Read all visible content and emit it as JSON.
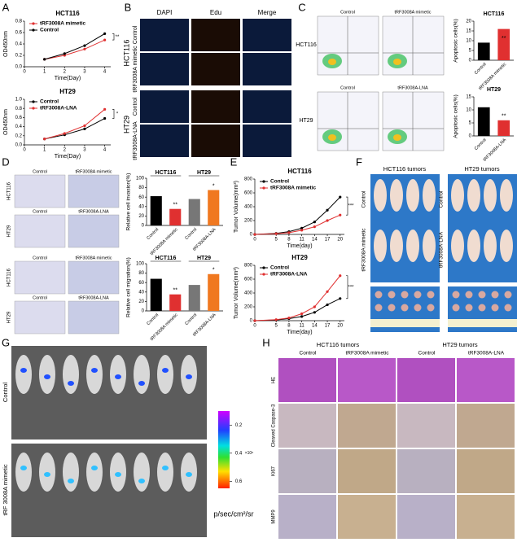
{
  "panel_labels": [
    "A",
    "B",
    "C",
    "D",
    "E",
    "F",
    "G",
    "H"
  ],
  "A": {
    "charts": [
      {
        "type": "line",
        "title": "HCT116",
        "xlabel": "Time(Day)",
        "ylabel": "OD450nm",
        "x": [
          1,
          2,
          3,
          4
        ],
        "xlim": [
          0,
          4.3
        ],
        "xticks": [
          0,
          1,
          2,
          3,
          4
        ],
        "ylim": [
          0,
          0.8
        ],
        "yticks": [
          {
            "value": 0,
            "label": "0.0"
          },
          0.2,
          0.4,
          0.6,
          0.8
        ],
        "annotation": "**",
        "series": [
          {
            "name": "tRF3008A mimetic",
            "color": "#e03030",
            "values": [
              0.13,
              0.2,
              0.31,
              0.47
            ]
          },
          {
            "name": "Control",
            "color": "#000000",
            "values": [
              0.13,
              0.23,
              0.37,
              0.58
            ]
          }
        ]
      },
      {
        "type": "line",
        "title": "HT29",
        "xlabel": "Time(Day)",
        "ylabel": "OD450nm",
        "x": [
          1,
          2,
          3,
          4
        ],
        "xlim": [
          0,
          4.3
        ],
        "xticks": [
          0,
          1,
          2,
          3,
          4
        ],
        "ylim": [
          0,
          1.0
        ],
        "yticks": [
          {
            "value": 0,
            "label": "0.0"
          },
          0.2,
          0.4,
          0.6,
          0.8,
          {
            "value": 1,
            "label": "1.0"
          }
        ],
        "annotation": "*",
        "series": [
          {
            "name": "Control",
            "color": "#000000",
            "values": [
              0.13,
              0.22,
              0.35,
              0.58
            ]
          },
          {
            "name": "tRF3008A-LNA",
            "color": "#e03030",
            "values": [
              0.13,
              0.25,
              0.42,
              0.78
            ]
          }
        ]
      }
    ]
  },
  "B": {
    "columns": [
      "DAPI",
      "Edu",
      "Merge"
    ],
    "rows": [
      "Control",
      "tRF3008A mimetic",
      "Control",
      "tRF3008A-LNA"
    ],
    "groups": [
      "HCT116",
      "HT29"
    ]
  },
  "C": {
    "flow_titles": [
      "Control",
      "tRF3008A mimetic",
      "Control",
      "tRF3008A-LNA"
    ],
    "groups": [
      "HCT116",
      "HT29"
    ],
    "charts": [
      {
        "type": "bar",
        "title": "HCT116",
        "ylabel": "Apoptosic cells(%)",
        "categories": [
          "Control",
          "tRF3008A mimetic"
        ],
        "values": [
          9,
          16
        ],
        "colors": [
          "#000000",
          "#e03030"
        ],
        "ylim": [
          0,
          20
        ],
        "yticks": [
          0,
          5,
          10,
          15,
          20
        ],
        "annotation": "**"
      },
      {
        "type": "bar",
        "title": "HT29",
        "ylabel": "Apoptosic cells(%)",
        "categories": [
          "Control",
          "tRF3008A-LNA"
        ],
        "values": [
          11,
          6
        ],
        "colors": [
          "#000000",
          "#e03030"
        ],
        "ylim": [
          0,
          15
        ],
        "yticks": [
          0,
          5,
          10,
          15
        ],
        "annotation": "**"
      }
    ]
  },
  "D": {
    "image_titles": [
      "Control",
      "tRF3008A mimetic",
      "Control",
      "tRF3008A-LNA",
      "Control",
      "tRF3008A mimetic",
      "Control",
      "tRF3008A-LNA"
    ],
    "row_labels": [
      "HCT116",
      "HT29",
      "HCT116",
      "HT29"
    ],
    "charts": [
      {
        "type": "bar",
        "ylabel": "Relative cell invasion(%)",
        "groups": [
          "HCT116",
          "HT29"
        ],
        "categories": [
          "Control",
          "tRF3008A mimetic",
          "Control",
          "tRF3008A-LNA"
        ],
        "values": [
          62,
          35,
          56,
          75
        ],
        "colors": [
          "#000000",
          "#e03030",
          "#777777",
          "#f07820"
        ],
        "ylim": [
          0,
          100
        ],
        "yticks": [
          0,
          20,
          40,
          60,
          80,
          100
        ],
        "annotations": [
          "**",
          "*"
        ]
      },
      {
        "type": "bar",
        "ylabel": "Relative cell migration(%)",
        "groups": [
          "HCT116",
          "HT29"
        ],
        "categories": [
          "Control",
          "tRF3008A mimetic",
          "Control",
          "tRF3008A-LNA"
        ],
        "values": [
          68,
          35,
          55,
          78
        ],
        "colors": [
          "#000000",
          "#e03030",
          "#777777",
          "#f07820"
        ],
        "ylim": [
          0,
          100
        ],
        "yticks": [
          0,
          20,
          40,
          60,
          80,
          100
        ],
        "annotations": [
          "**",
          "*"
        ]
      }
    ]
  },
  "E": {
    "charts": [
      {
        "type": "line",
        "title": "HCT116",
        "xlabel": "Time(day)",
        "ylabel": "Tumor Volume(mm³)",
        "x": [
          0,
          5,
          8,
          11,
          14,
          17,
          20
        ],
        "xlim": [
          0,
          21
        ],
        "xticks": [
          0,
          5,
          8,
          11,
          14,
          17,
          20
        ],
        "ylim": [
          0,
          800
        ],
        "yticks": [
          0,
          200,
          400,
          600,
          800
        ],
        "annotation": "***",
        "series": [
          {
            "name": "Control",
            "color": "#000000",
            "values": [
              0,
              15,
              40,
              90,
              180,
              350,
              540
            ]
          },
          {
            "name": "tRF3008A mimetic",
            "color": "#e03030",
            "values": [
              0,
              10,
              25,
              60,
              110,
              200,
              280
            ]
          }
        ]
      },
      {
        "type": "line",
        "title": "HT29",
        "xlabel": "Time(day)",
        "ylabel": "Tumor Volume(mm³)",
        "x": [
          0,
          5,
          8,
          11,
          14,
          17,
          20
        ],
        "xlim": [
          0,
          21
        ],
        "xticks": [
          0,
          5,
          8,
          11,
          14,
          17,
          20
        ],
        "ylim": [
          0,
          800
        ],
        "yticks": [
          0,
          200,
          400,
          600,
          800
        ],
        "annotation": "***",
        "series": [
          {
            "name": "Control",
            "color": "#000000",
            "values": [
              0,
              10,
              30,
              60,
              120,
              230,
              320
            ]
          },
          {
            "name": "tRF3008A-LNA",
            "color": "#e03030",
            "values": [
              0,
              15,
              40,
              100,
              200,
              420,
              650
            ]
          }
        ]
      }
    ]
  },
  "F": {
    "titles": [
      "HCT116 tumors",
      "HT29 tumors"
    ],
    "row_labels": [
      "Control",
      "tRF3008A mimetic",
      "Control",
      "tRF3008A-LNA"
    ]
  },
  "G": {
    "row_labels": [
      "Control",
      "tRF 3008A mimetic"
    ],
    "colorbar": {
      "lim": [
        0.1,
        0.65
      ],
      "ticks": [
        0.2,
        0.4,
        0.6
      ],
      "multiplier": "×10⁸",
      "unit": "p/sec/cm²/sr"
    }
  },
  "H": {
    "groups": [
      "HCT116 tumors",
      "HT29 tumors"
    ],
    "columns": [
      "Control",
      "tRF3008A mimetic",
      "Control",
      "tRF3008A-LNA"
    ],
    "rows": [
      "HE",
      "Cleaved Caspase-3",
      "Ki67",
      "MMP9"
    ]
  }
}
